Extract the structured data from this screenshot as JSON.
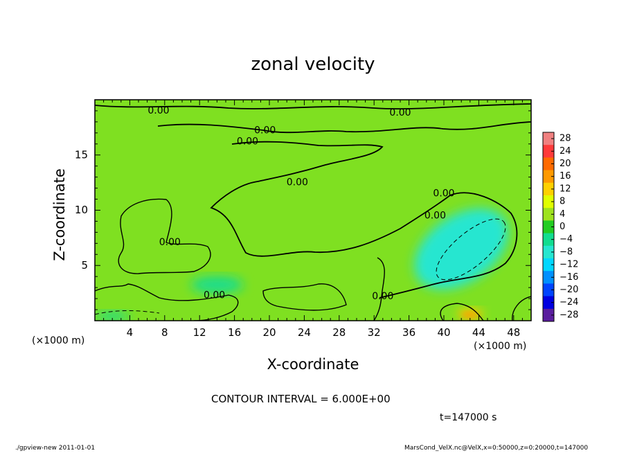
{
  "chart_data": {
    "type": "heatmap",
    "title": "zonal velocity",
    "xlabel": "X-coordinate",
    "ylabel": "Z-coordinate",
    "x_unit": "(×1000 m)",
    "x_range": [
      0,
      50
    ],
    "y_range": [
      0,
      20
    ],
    "x_ticks": [
      4,
      8,
      12,
      16,
      20,
      24,
      28,
      32,
      36,
      40,
      44,
      48
    ],
    "y_ticks": [
      5,
      10,
      15
    ],
    "colorbar": {
      "levels": [
        28,
        24,
        20,
        16,
        12,
        8,
        4,
        0,
        -4,
        -8,
        -12,
        -16,
        -20,
        -24,
        -28
      ],
      "labels": [
        "28",
        "24",
        "20",
        "16",
        "12",
        "8",
        "4",
        "0",
        "−4",
        "−8",
        "−12",
        "−16",
        "−20",
        "−24",
        "−28"
      ],
      "colors": [
        "#f08080",
        "#ff3a3a",
        "#ff6a00",
        "#ff9a00",
        "#ffd000",
        "#e0ff00",
        "#9ee21e",
        "#22cc22",
        "#12dd90",
        "#26e6d0",
        "#00d7ff",
        "#0090ff",
        "#0044ff",
        "#0000e0",
        "#5a1e9e"
      ]
    },
    "background_color": "#7fe021",
    "regions": [
      {
        "kind": "positive",
        "x": [
          41.5,
          44.5
        ],
        "y": [
          0.2,
          1.1
        ],
        "color": "#ffd000"
      },
      {
        "kind": "negative",
        "x": [
          36,
          48
        ],
        "y": [
          3.5,
          9.5
        ],
        "color": "#26e6d0"
      },
      {
        "kind": "negative",
        "x": [
          11,
          17
        ],
        "y": [
          2.5,
          4
        ],
        "color": "#12dd90"
      },
      {
        "kind": "negative",
        "x": [
          0,
          4
        ],
        "y": [
          0,
          0.8
        ],
        "color": "#12dd90"
      }
    ],
    "contour_labels": [
      {
        "text": "0.00",
        "x": 7.3,
        "y": 19.0
      },
      {
        "text": "0.00",
        "x": 35.0,
        "y": 18.8
      },
      {
        "text": "0.00",
        "x": 19.5,
        "y": 17.2
      },
      {
        "text": "0.00",
        "x": 17.5,
        "y": 16.2
      },
      {
        "text": "0.00",
        "x": 23.2,
        "y": 12.5
      },
      {
        "text": "0.00",
        "x": 40.0,
        "y": 11.5
      },
      {
        "text": "0.00",
        "x": 39.0,
        "y": 9.5
      },
      {
        "text": "0.00",
        "x": 8.6,
        "y": 7.1
      },
      {
        "text": "0.00",
        "x": 13.7,
        "y": 2.3
      },
      {
        "text": "0.00",
        "x": 33.0,
        "y": 2.2
      }
    ],
    "contour_interval": "CONTOUR INTERVAL = 6.000E+00",
    "time": "t=147000 s"
  },
  "footer": {
    "left": "./gpview-new  2011-01-01",
    "right": "MarsCond_VelX.nc@VelX,x=0:50000,z=0:20000,t=147000"
  }
}
